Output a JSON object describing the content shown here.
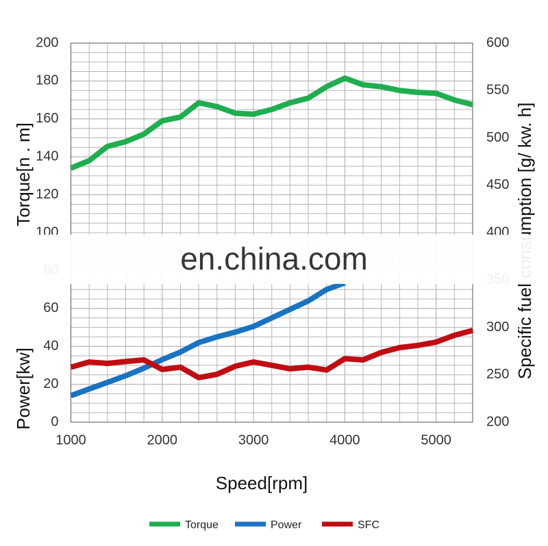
{
  "chart_data": {
    "type": "line",
    "xlabel": "Speed[rpm]",
    "ylabel_top": "Torque[n . m]",
    "ylabel_bottom": "Power[kw]",
    "y2label": "Specific fuel consumption [g/ kw. h]",
    "watermark": "en.china.com",
    "x": [
      1000,
      1200,
      1400,
      1600,
      1800,
      2000,
      2200,
      2400,
      2600,
      2800,
      3000,
      3200,
      3400,
      3600,
      3800,
      4000,
      4200,
      4400,
      4600,
      4800,
      5000,
      5200,
      5400
    ],
    "series": [
      {
        "name": "Torque",
        "color": "#1fae4f",
        "axis": "y",
        "values": [
          134,
          138,
          145.5,
          148,
          152,
          159,
          161,
          168.5,
          166.5,
          163,
          162.5,
          165,
          168.5,
          171,
          177,
          181.5,
          178,
          177,
          175,
          174,
          173.5,
          170,
          167.5
        ]
      },
      {
        "name": "Power",
        "color": "#1a73c1",
        "axis": "y",
        "values": [
          14,
          17.5,
          21,
          24.5,
          28.5,
          33,
          37,
          42,
          45,
          47.5,
          50.5,
          55,
          59.5,
          64,
          70,
          73.5,
          null,
          null,
          null,
          null,
          null,
          null,
          null
        ]
      },
      {
        "name": "SFC",
        "color": "#c00d12",
        "axis": "y2",
        "values": [
          258,
          263.5,
          262,
          264,
          265.7,
          255.6,
          258,
          247,
          250.5,
          259,
          263.5,
          260,
          256.3,
          258,
          255,
          267,
          265.7,
          273.6,
          278.7,
          281,
          284.5,
          291.7,
          296.8
        ]
      }
    ],
    "xlim": [
      1000,
      5400
    ],
    "xticks": [
      1000,
      2000,
      3000,
      4000,
      5000
    ],
    "ylim": [
      0,
      200
    ],
    "yticks": [
      0,
      20,
      40,
      60,
      80,
      100,
      120,
      140,
      160,
      180,
      200
    ],
    "y2lim": [
      200,
      600
    ],
    "y2ticks": [
      200,
      250,
      300,
      350,
      400,
      450,
      500,
      550,
      600
    ],
    "grid": true,
    "x_minor_step": 200,
    "y_minor_step": 5,
    "legend": "bottom"
  }
}
